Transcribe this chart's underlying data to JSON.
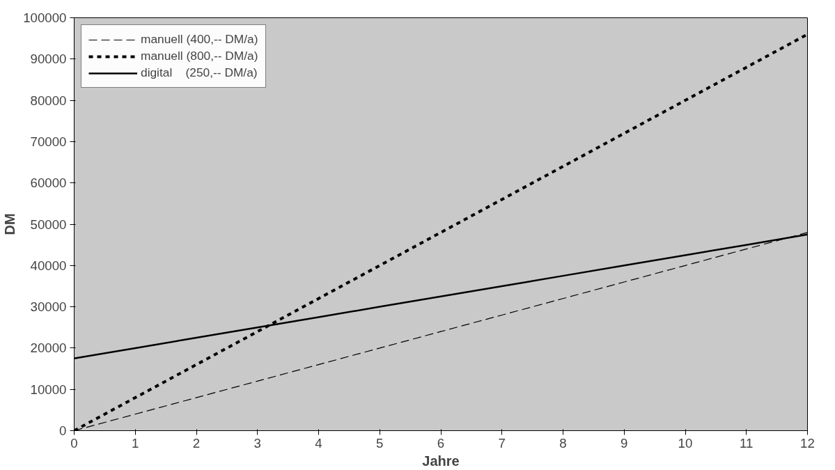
{
  "chart_data": {
    "type": "line",
    "xlabel": "Jahre",
    "ylabel": "DM",
    "x": [
      0,
      1,
      2,
      3,
      4,
      5,
      6,
      7,
      8,
      9,
      10,
      11,
      12
    ],
    "series": [
      {
        "name": "manuell (400,-- DM/a)",
        "color": "#000000",
        "line_style": "dashed",
        "values": [
          0,
          4000,
          8000,
          12000,
          16000,
          20000,
          24000,
          28000,
          32000,
          36000,
          40000,
          44000,
          48000
        ]
      },
      {
        "name": "manuell (800,-- DM/a)",
        "color": "#000000",
        "line_style": "dotted",
        "values": [
          0,
          8000,
          16000,
          24000,
          32000,
          40000,
          48000,
          56000,
          64000,
          72000,
          80000,
          88000,
          96000
        ]
      },
      {
        "name": "digital    (250,-- DM/a)",
        "color": "#000000",
        "line_style": "solid",
        "values": [
          17500,
          20000,
          22500,
          25000,
          27500,
          30000,
          32500,
          35000,
          37500,
          40000,
          42500,
          45000,
          47500
        ]
      }
    ],
    "xlim": [
      0,
      12
    ],
    "xticks": [
      0,
      1,
      2,
      3,
      4,
      5,
      6,
      7,
      8,
      9,
      10,
      11,
      12
    ],
    "ylim": [
      0,
      100000
    ],
    "yticks": [
      0,
      10000,
      20000,
      30000,
      40000,
      50000,
      60000,
      70000,
      80000,
      90000,
      100000
    ],
    "grid": false,
    "legend": "top left",
    "marker": "none"
  }
}
